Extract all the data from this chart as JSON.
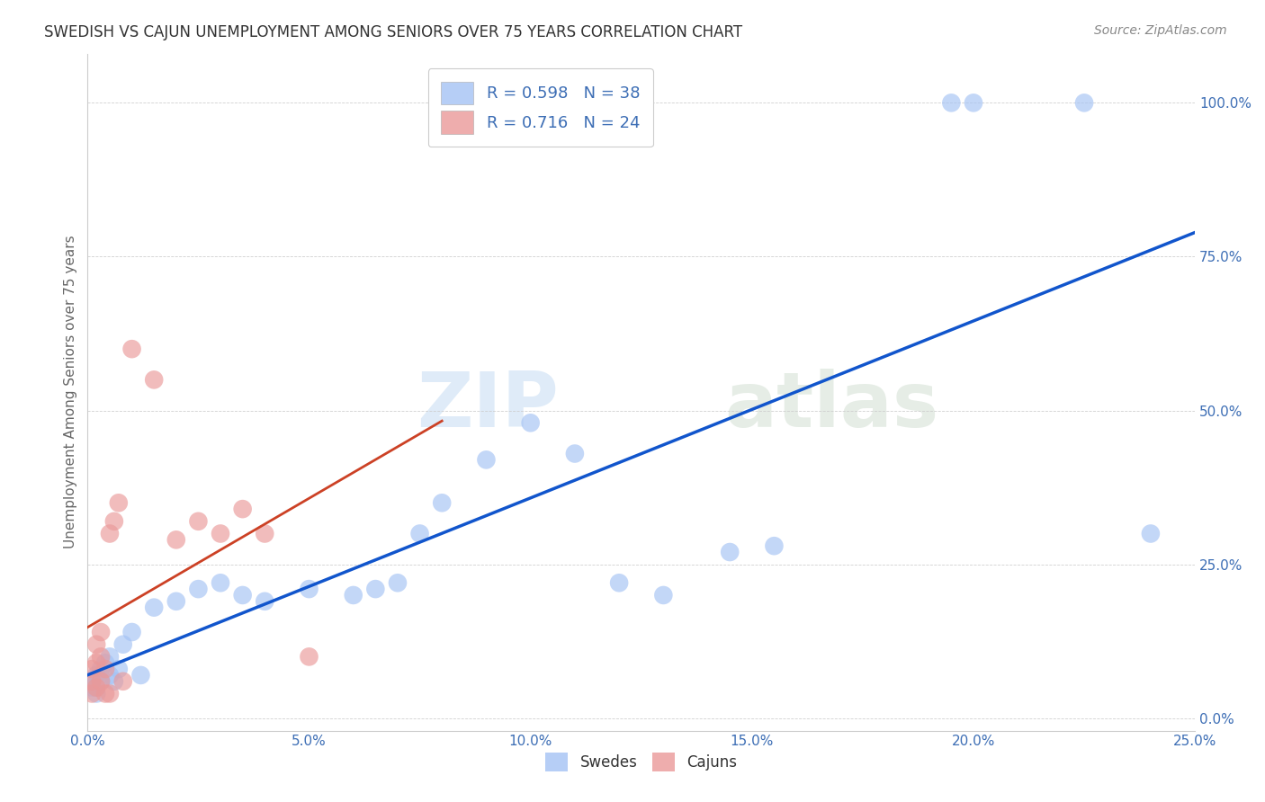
{
  "title": "SWEDISH VS CAJUN UNEMPLOYMENT AMONG SENIORS OVER 75 YEARS CORRELATION CHART",
  "source": "Source: ZipAtlas.com",
  "ylabel": "Unemployment Among Seniors over 75 years",
  "xlim": [
    0.0,
    0.25
  ],
  "ylim": [
    -0.02,
    1.08
  ],
  "xticks": [
    0.0,
    0.05,
    0.1,
    0.15,
    0.2,
    0.25
  ],
  "xticklabels": [
    "0.0%",
    "5.0%",
    "10.0%",
    "15.0%",
    "20.0%",
    "25.0%"
  ],
  "yticks": [
    0.0,
    0.25,
    0.5,
    0.75,
    1.0
  ],
  "yticklabels": [
    "0.0%",
    "25.0%",
    "50.0%",
    "75.0%",
    "100.0%"
  ],
  "watermark_zip": "ZIP",
  "watermark_atlas": "atlas",
  "legend_r_blue": "R = 0.598",
  "legend_n_blue": "N = 38",
  "legend_r_pink": "R = 0.716",
  "legend_n_pink": "N = 24",
  "blue_color": "#a4c2f4",
  "pink_color": "#ea9999",
  "blue_line_color": "#1155cc",
  "pink_line_color": "#cc4125",
  "swedes_x": [
    0.001,
    0.001,
    0.002,
    0.002,
    0.002,
    0.003,
    0.003,
    0.004,
    0.005,
    0.005,
    0.006,
    0.007,
    0.008,
    0.01,
    0.012,
    0.015,
    0.02,
    0.025,
    0.03,
    0.035,
    0.04,
    0.05,
    0.06,
    0.065,
    0.07,
    0.075,
    0.08,
    0.09,
    0.1,
    0.11,
    0.12,
    0.13,
    0.145,
    0.155,
    0.195,
    0.2,
    0.225,
    0.24
  ],
  "swedes_y": [
    0.05,
    0.06,
    0.04,
    0.07,
    0.05,
    0.08,
    0.06,
    0.09,
    0.07,
    0.1,
    0.06,
    0.08,
    0.12,
    0.14,
    0.07,
    0.18,
    0.19,
    0.21,
    0.22,
    0.2,
    0.19,
    0.21,
    0.2,
    0.21,
    0.22,
    0.3,
    0.35,
    0.42,
    0.48,
    0.43,
    0.22,
    0.2,
    0.27,
    0.28,
    1.0,
    1.0,
    1.0,
    0.3
  ],
  "cajuns_x": [
    0.001,
    0.001,
    0.001,
    0.002,
    0.002,
    0.002,
    0.003,
    0.003,
    0.003,
    0.004,
    0.004,
    0.005,
    0.005,
    0.006,
    0.007,
    0.008,
    0.01,
    0.015,
    0.02,
    0.025,
    0.03,
    0.035,
    0.04,
    0.05
  ],
  "cajuns_y": [
    0.04,
    0.06,
    0.08,
    0.05,
    0.09,
    0.12,
    0.06,
    0.1,
    0.14,
    0.04,
    0.08,
    0.3,
    0.04,
    0.32,
    0.35,
    0.06,
    0.6,
    0.55,
    0.29,
    0.32,
    0.3,
    0.34,
    0.3,
    0.1
  ]
}
